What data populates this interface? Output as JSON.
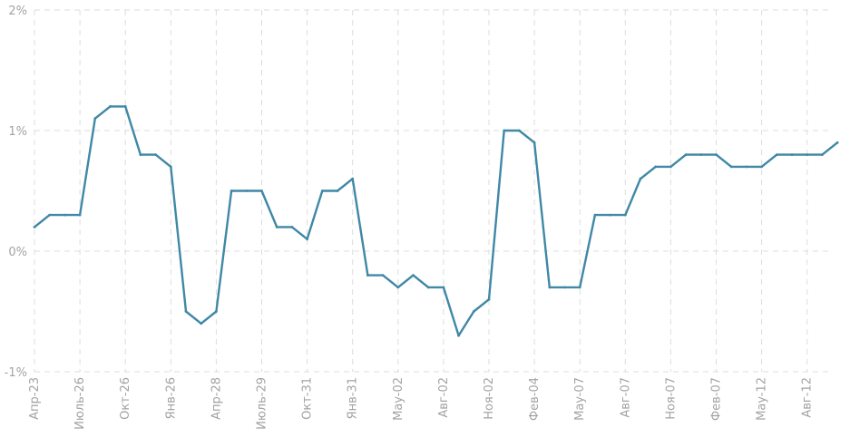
{
  "chart_data": {
    "type": "line",
    "title": "",
    "xlabel": "",
    "ylabel": "",
    "ylim": [
      -1,
      2
    ],
    "yticks": [
      2,
      1,
      0,
      -1
    ],
    "ytick_labels": [
      "2%",
      "1%",
      "0%",
      "-1%"
    ],
    "x_tick_labels": [
      "Апр-23",
      "Июль-26",
      "Окт-26",
      "Янв-26",
      "Апр-28",
      "Июль-29",
      "Окт-31",
      "Янв-31",
      "May-02",
      "Авг-02",
      "Ноя-02",
      "Фев-04",
      "May-07",
      "Авг-07",
      "Ноя-07",
      "Фев-07",
      "May-12",
      "Авг-12"
    ],
    "grid": true,
    "color": "#3f88a6",
    "series": [
      {
        "name": "",
        "values": [
          0.2,
          0.3,
          0.3,
          0.3,
          1.1,
          1.2,
          1.2,
          0.8,
          0.8,
          0.7,
          -0.5,
          -0.6,
          -0.5,
          0.5,
          0.5,
          0.5,
          0.2,
          0.2,
          0.1,
          0.5,
          0.5,
          0.6,
          -0.2,
          -0.2,
          -0.3,
          -0.2,
          -0.3,
          -0.3,
          -0.7,
          -0.5,
          -0.4,
          1.0,
          1.0,
          0.9,
          -0.3,
          -0.3,
          -0.3,
          0.3,
          0.3,
          0.3,
          0.6,
          0.7,
          0.7,
          0.8,
          0.8,
          0.8,
          0.7,
          0.7,
          0.7,
          0.8,
          0.8,
          0.8,
          0.8,
          0.9
        ]
      }
    ]
  }
}
